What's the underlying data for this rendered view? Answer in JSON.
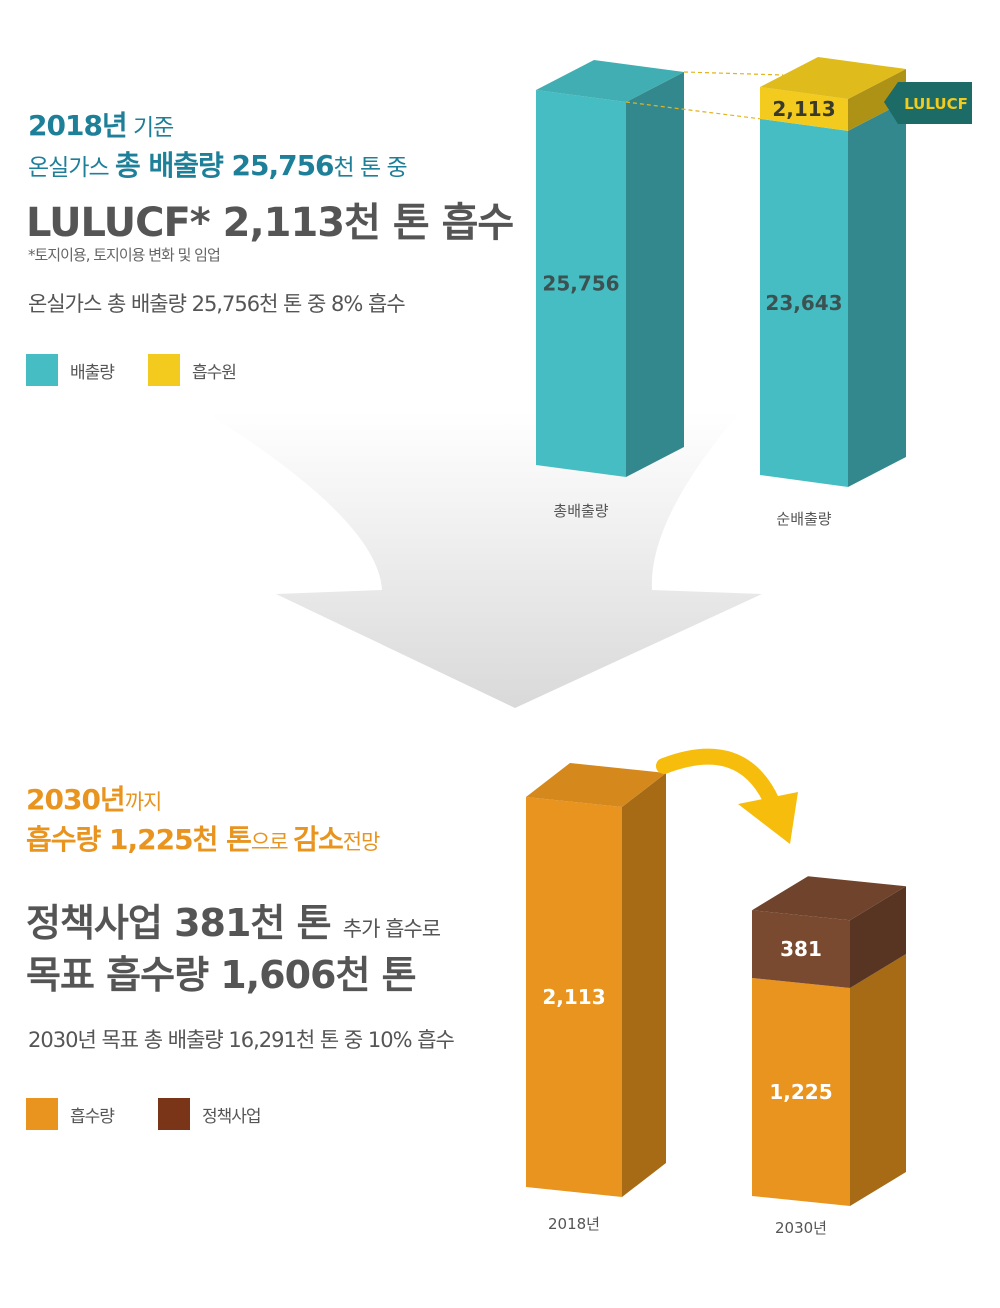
{
  "top_text": {
    "year": "2018년",
    "basis": " 기준",
    "line2_a": "온실가스 ",
    "line2_b": "총 배출량 25,756",
    "line2_c": "천 톤 중",
    "headline": "LULUCF* 2,113천 톤 흡수",
    "footnote": "*토지이용, 토지이용 변화 및 임업",
    "summary": "온실가스 총 배출량 25,756천 톤 중 8% 흡수"
  },
  "top_legend": [
    {
      "label": "배출량",
      "color": "#46bdc2"
    },
    {
      "label": "흡수원",
      "color": "#f2cb1e"
    }
  ],
  "bottom_text": {
    "line1_a": "2030년",
    "line1_b": "까지",
    "line2_a": "흡수량 1,225천 톤",
    "line2_b": "으로 ",
    "line2_c": "감소",
    "line2_d": "전망",
    "head1_a": "정책사업 381천 톤 ",
    "head1_b": "추가 흡수로",
    "head2": "목표 흡수량 1,606천 톤",
    "summary": "2030년 목표 총 배출량 16,291천 톤 중 10% 흡수"
  },
  "bottom_legend": [
    {
      "label": "흡수량",
      "color": "#e8941e"
    },
    {
      "label": "정책사업",
      "color": "#7a3418"
    }
  ],
  "callout": {
    "label": "LULUCF",
    "color": "#1c6b66"
  },
  "colors": {
    "teal": "#46bdc2",
    "yellow": "#f2cb1e",
    "orange": "#e8941e",
    "brown": "#7a4a30",
    "arrow_yellow": "#f7bd0c"
  },
  "chart_data": [
    {
      "type": "bar",
      "stacked": true,
      "categories": [
        "총배출량",
        "순배출량"
      ],
      "series": [
        {
          "name": "배출량",
          "values": [
            25756,
            23643
          ],
          "labels": [
            "25,756",
            "23,643"
          ]
        },
        {
          "name": "흡수원",
          "values": [
            0,
            2113
          ],
          "labels": [
            "",
            "2,113"
          ]
        }
      ]
    },
    {
      "type": "bar",
      "stacked": true,
      "categories": [
        "2018년",
        "2030년"
      ],
      "series": [
        {
          "name": "흡수량",
          "values": [
            2113,
            1225
          ],
          "labels": [
            "2,113",
            "1,225"
          ]
        },
        {
          "name": "정책사업",
          "values": [
            0,
            381
          ],
          "labels": [
            "",
            "381"
          ]
        }
      ]
    }
  ]
}
